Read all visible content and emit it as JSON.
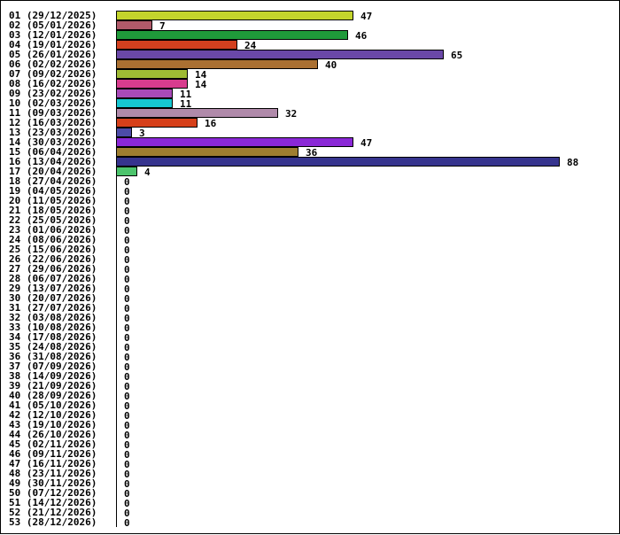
{
  "chart_data": {
    "type": "bar",
    "orientation": "horizontal",
    "title": "",
    "xlabel": "",
    "ylabel": "",
    "grid": false,
    "legend": "none",
    "xlim": [
      0,
      88
    ],
    "categories": [
      "01 (29/12/2025)",
      "02 (05/01/2026)",
      "03 (12/01/2026)",
      "04 (19/01/2026)",
      "05 (26/01/2026)",
      "06 (02/02/2026)",
      "07 (09/02/2026)",
      "08 (16/02/2026)",
      "09 (23/02/2026)",
      "10 (02/03/2026)",
      "11 (09/03/2026)",
      "12 (16/03/2026)",
      "13 (23/03/2026)",
      "14 (30/03/2026)",
      "15 (06/04/2026)",
      "16 (13/04/2026)",
      "17 (20/04/2026)",
      "18 (27/04/2026)",
      "19 (04/05/2026)",
      "20 (11/05/2026)",
      "21 (18/05/2026)",
      "22 (25/05/2026)",
      "23 (01/06/2026)",
      "24 (08/06/2026)",
      "25 (15/06/2026)",
      "26 (22/06/2026)",
      "27 (29/06/2026)",
      "28 (06/07/2026)",
      "29 (13/07/2026)",
      "30 (20/07/2026)",
      "31 (27/07/2026)",
      "32 (03/08/2026)",
      "33 (10/08/2026)",
      "34 (17/08/2026)",
      "35 (24/08/2026)",
      "36 (31/08/2026)",
      "37 (07/09/2026)",
      "38 (14/09/2026)",
      "39 (21/09/2026)",
      "40 (28/09/2026)",
      "41 (05/10/2026)",
      "42 (12/10/2026)",
      "43 (19/10/2026)",
      "44 (26/10/2026)",
      "45 (02/11/2026)",
      "46 (09/11/2026)",
      "47 (16/11/2026)",
      "48 (23/11/2026)",
      "49 (30/11/2026)",
      "50 (07/12/2026)",
      "51 (14/12/2026)",
      "52 (21/12/2026)",
      "53 (28/12/2026)"
    ],
    "values": [
      47,
      7,
      46,
      24,
      65,
      40,
      14,
      14,
      11,
      11,
      32,
      16,
      3,
      47,
      36,
      88,
      4,
      0,
      0,
      0,
      0,
      0,
      0,
      0,
      0,
      0,
      0,
      0,
      0,
      0,
      0,
      0,
      0,
      0,
      0,
      0,
      0,
      0,
      0,
      0,
      0,
      0,
      0,
      0,
      0,
      0,
      0,
      0,
      0,
      0,
      0,
      0,
      0
    ],
    "colors": [
      "#c3d42c",
      "#b05a6a",
      "#1f9a3a",
      "#d3401f",
      "#6a48a8",
      "#aa7032",
      "#9fba34",
      "#d83c8e",
      "#a84ab8",
      "#16c6d2",
      "#b08aaa",
      "#d6401a",
      "#4c4ca8",
      "#8a28d6",
      "#9e7e30",
      "#36348e",
      "#4cc46c"
    ]
  }
}
